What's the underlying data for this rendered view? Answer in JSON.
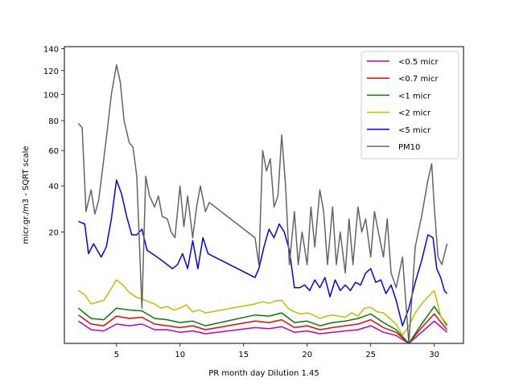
{
  "chart_data": {
    "type": "line",
    "title": "",
    "xlabel": "PR month day  Dilution 1.45",
    "ylabel": "micr.gr./m3 - SQRT scale",
    "yscale": "sqrt",
    "xlim": [
      0.9,
      32.3
    ],
    "ylim": [
      0,
      142
    ],
    "xticks": [
      5,
      10,
      15,
      20,
      25,
      30
    ],
    "yticks": [
      20,
      40,
      60,
      80,
      100,
      120,
      140
    ],
    "grid": false,
    "legend_position": "top-right",
    "series": [
      {
        "name": "<0.5 micr",
        "color": "#bf00bf",
        "x": [
          2.0,
          3.0,
          4.0,
          5.0,
          6.0,
          7.0,
          8.0,
          9.0,
          10.0,
          11.0,
          12.0,
          15.9,
          17.0,
          18.0,
          19.0,
          20.0,
          21.0,
          22.0,
          23.0,
          24.0,
          25.0,
          26.0,
          27.0,
          28.0,
          29.0,
          30.0,
          31.0
        ],
        "y": [
          0.8,
          0.3,
          0.25,
          0.6,
          0.5,
          0.6,
          0.3,
          0.3,
          0.2,
          0.25,
          0.15,
          0.4,
          0.35,
          0.45,
          0.2,
          0.25,
          0.15,
          0.2,
          0.25,
          0.3,
          0.5,
          0.2,
          0.1,
          0.0,
          0.2,
          0.8,
          0.2
        ]
      },
      {
        "name": "<0.7 micr",
        "color": "#ff0000",
        "x": [
          2.0,
          3.0,
          4.0,
          5.0,
          6.0,
          7.0,
          8.0,
          9.0,
          10.0,
          11.0,
          12.0,
          15.9,
          17.0,
          18.0,
          19.0,
          20.0,
          21.0,
          22.0,
          23.0,
          24.0,
          25.0,
          26.0,
          27.0,
          28.0,
          29.0,
          30.0,
          31.0
        ],
        "y": [
          1.3,
          0.6,
          0.5,
          1.2,
          1.0,
          1.1,
          0.6,
          0.5,
          0.4,
          0.5,
          0.3,
          0.8,
          0.7,
          0.9,
          0.4,
          0.5,
          0.3,
          0.4,
          0.5,
          0.6,
          0.9,
          0.4,
          0.2,
          0.0,
          0.4,
          1.4,
          0.3
        ]
      },
      {
        "name": "<1 micr",
        "color": "#008000",
        "x": [
          2.0,
          3.0,
          4.0,
          5.0,
          6.0,
          7.0,
          8.0,
          9.0,
          10.0,
          11.0,
          12.0,
          15.9,
          17.0,
          18.0,
          19.0,
          20.0,
          21.0,
          22.0,
          23.0,
          24.0,
          25.0,
          26.0,
          27.0,
          28.0,
          29.0,
          30.0,
          31.0
        ],
        "y": [
          2.0,
          1.0,
          0.9,
          2.0,
          1.8,
          1.7,
          1.0,
          0.9,
          0.7,
          0.8,
          0.5,
          1.3,
          1.2,
          1.5,
          0.7,
          0.8,
          0.5,
          0.7,
          0.8,
          1.0,
          1.4,
          0.7,
          0.3,
          0.0,
          0.6,
          2.2,
          0.5
        ]
      },
      {
        "name": "<2 micr",
        "color": "#bfbf00",
        "x": [
          2.0,
          2.5,
          3.0,
          4.0,
          4.5,
          5.0,
          5.5,
          6.0,
          6.5,
          7.0,
          7.5,
          8.0,
          8.5,
          9.0,
          9.5,
          10.0,
          10.5,
          11.0,
          11.5,
          12.0,
          15.9,
          16.5,
          17.0,
          17.5,
          18.0,
          18.5,
          19.0,
          19.5,
          20.0,
          20.5,
          21.0,
          21.5,
          22.0,
          22.5,
          23.0,
          23.5,
          24.0,
          24.5,
          25.0,
          25.5,
          26.0,
          26.5,
          27.0,
          27.5,
          28.0,
          28.5,
          29.0,
          29.5,
          30.0,
          30.5,
          31.0
        ],
        "y": [
          4.5,
          3.8,
          2.5,
          3.0,
          4.5,
          6.5,
          5.5,
          4.2,
          3.5,
          3.2,
          2.8,
          2.5,
          2.0,
          2.2,
          1.8,
          2.0,
          2.4,
          1.6,
          1.8,
          1.5,
          2.5,
          2.8,
          2.6,
          2.9,
          3.0,
          2.0,
          1.6,
          1.4,
          1.5,
          1.3,
          1.0,
          1.2,
          1.3,
          1.2,
          1.1,
          1.5,
          1.2,
          2.0,
          2.1,
          1.6,
          1.5,
          1.0,
          0.6,
          0.1,
          0.5,
          1.5,
          2.5,
          3.5,
          4.5,
          1.2,
          0.6
        ]
      },
      {
        "name": "<5 micr",
        "color": "#0000ff",
        "x": [
          2.0,
          2.5,
          2.8,
          3.2,
          3.8,
          4.2,
          4.6,
          5.0,
          5.4,
          5.8,
          6.2,
          6.6,
          7.0,
          7.4,
          7.8,
          8.2,
          8.6,
          9.0,
          9.4,
          9.8,
          10.2,
          10.6,
          11.0,
          11.4,
          11.8,
          12.2,
          15.9,
          16.2,
          16.6,
          17.0,
          17.4,
          17.8,
          18.2,
          18.6,
          19.0,
          19.4,
          19.8,
          20.2,
          20.6,
          21.0,
          21.4,
          21.8,
          22.2,
          22.6,
          23.0,
          23.4,
          23.8,
          24.2,
          24.6,
          25.0,
          25.4,
          25.8,
          26.2,
          26.6,
          27.0,
          27.5,
          28.0,
          28.5,
          29.0,
          29.5,
          29.9,
          30.2,
          30.5,
          30.8,
          31.0
        ],
        "y": [
          24,
          23,
          13,
          16,
          12,
          15,
          25,
          43,
          36,
          26,
          19,
          19,
          21,
          14,
          13,
          12,
          11,
          10,
          9,
          10,
          13,
          9,
          17,
          9,
          18,
          13,
          7,
          9,
          15,
          21,
          18,
          23,
          20,
          14,
          5,
          5,
          5.5,
          4.5,
          6.5,
          5,
          7,
          3.5,
          6.5,
          4.5,
          5.5,
          4.5,
          6,
          5.5,
          8,
          9,
          6,
          6.5,
          4,
          5.5,
          3,
          0.5,
          2,
          6,
          11,
          19,
          18,
          9,
          7,
          4.5,
          4
        ]
      },
      {
        "name": "PM10",
        "color": "#646464",
        "x": [
          2.0,
          2.3,
          2.6,
          3.0,
          3.3,
          3.6,
          4.0,
          4.3,
          4.6,
          5.0,
          5.3,
          5.6,
          6.0,
          6.3,
          6.6,
          7.0,
          7.3,
          7.6,
          8.0,
          8.3,
          8.6,
          9.0,
          9.3,
          9.6,
          10.0,
          10.3,
          10.6,
          11.0,
          11.3,
          11.6,
          12.0,
          12.3,
          15.9,
          16.2,
          16.5,
          16.8,
          17.1,
          17.4,
          17.7,
          18.0,
          18.3,
          18.6,
          19.0,
          19.3,
          19.6,
          20.0,
          20.3,
          20.6,
          21.0,
          21.3,
          21.6,
          22.0,
          22.3,
          22.6,
          23.0,
          23.3,
          23.6,
          24.0,
          24.3,
          24.6,
          25.0,
          25.3,
          25.6,
          26.0,
          26.3,
          26.6,
          27.0,
          27.5,
          28.0,
          28.5,
          29.0,
          29.5,
          29.8,
          30.0,
          30.3,
          30.6,
          31.0
        ],
        "y": [
          78,
          75,
          28,
          38,
          27,
          33,
          55,
          75,
          100,
          125,
          110,
          80,
          65,
          62,
          45,
          2,
          45,
          35,
          30,
          35,
          26,
          25,
          20,
          18,
          40,
          22,
          35,
          18,
          30,
          40,
          28,
          32,
          18,
          10,
          60,
          48,
          55,
          30,
          35,
          70,
          40,
          10,
          28,
          10,
          20,
          10,
          30,
          15,
          38,
          28,
          10,
          30,
          10,
          20,
          8,
          25,
          10,
          30,
          20,
          25,
          12,
          28,
          20,
          12,
          25,
          8,
          5,
          12,
          0,
          15,
          26,
          43,
          52,
          30,
          12,
          10,
          16
        ]
      }
    ]
  }
}
